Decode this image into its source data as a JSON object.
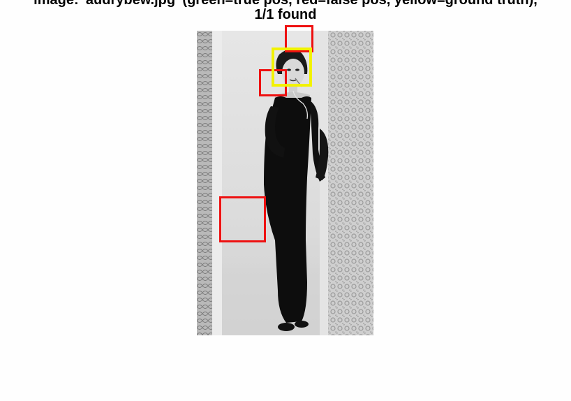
{
  "title": {
    "line1": "image: 'audrybew.jpg' (green=true pos, red=false pos, yellow=ground truth),",
    "line2": "1/1 found"
  },
  "colors": {
    "false_positive": "#ee1111",
    "ground_truth": "#f2f200",
    "true_positive": "#00c000"
  },
  "photo": {
    "alt": "audrybew.jpg"
  }
}
